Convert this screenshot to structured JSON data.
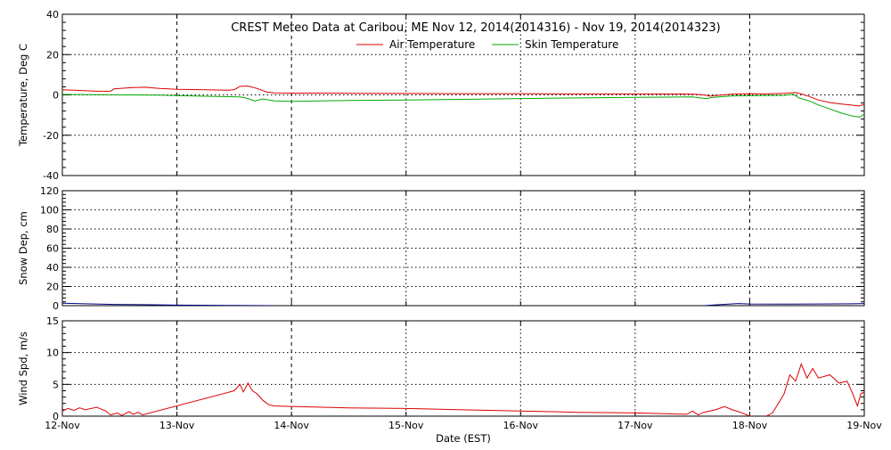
{
  "chart_data": [
    {
      "type": "line",
      "title": "CREST Meteo Data at Caribou, ME   Nov 12, 2014(2014316) - Nov 19, 2014(2014323)",
      "ylabel": "Temperature, Deg C",
      "xlabel": "",
      "ylim": [
        -40,
        40
      ],
      "yticks": [
        -40,
        -20,
        0,
        20,
        40
      ],
      "xlim": [
        12,
        19
      ],
      "grid": true,
      "legend_position": "top-center",
      "series": [
        {
          "name": "Air Temperature",
          "color": "#dd0000",
          "points": [
            [
              12.0,
              2.5
            ],
            [
              12.15,
              2.2
            ],
            [
              12.3,
              1.8
            ],
            [
              12.42,
              1.8
            ],
            [
              12.45,
              3.0
            ],
            [
              12.6,
              3.6
            ],
            [
              12.72,
              3.8
            ],
            [
              12.85,
              3.2
            ],
            [
              13.0,
              2.8
            ],
            [
              13.2,
              2.6
            ],
            [
              13.45,
              2.3
            ],
            [
              13.5,
              2.6
            ],
            [
              13.55,
              4.2
            ],
            [
              13.62,
              4.4
            ],
            [
              13.7,
              3.2
            ],
            [
              13.78,
              1.5
            ],
            [
              13.85,
              1.0
            ],
            [
              14.0,
              0.9
            ],
            [
              14.5,
              0.8
            ],
            [
              15.0,
              0.7
            ],
            [
              15.5,
              0.6
            ],
            [
              16.0,
              0.6
            ],
            [
              16.5,
              0.5
            ],
            [
              17.0,
              0.5
            ],
            [
              17.5,
              0.4
            ],
            [
              17.6,
              0.0
            ],
            [
              17.65,
              -0.6
            ],
            [
              17.72,
              -0.2
            ],
            [
              17.85,
              0.4
            ],
            [
              18.0,
              0.6
            ],
            [
              18.15,
              0.5
            ],
            [
              18.3,
              0.8
            ],
            [
              18.4,
              1.2
            ],
            [
              18.45,
              0.5
            ],
            [
              18.52,
              -0.8
            ],
            [
              18.6,
              -2.5
            ],
            [
              18.7,
              -3.8
            ],
            [
              18.8,
              -4.5
            ],
            [
              18.88,
              -5.0
            ],
            [
              18.95,
              -5.5
            ],
            [
              19.0,
              -4.8
            ]
          ]
        },
        {
          "name": "Skin Temperature",
          "color": "#00aa00",
          "points": [
            [
              12.0,
              0.2
            ],
            [
              12.3,
              0.1
            ],
            [
              12.6,
              0.0
            ],
            [
              12.85,
              -0.1
            ],
            [
              13.0,
              -0.3
            ],
            [
              13.2,
              -0.6
            ],
            [
              13.45,
              -0.9
            ],
            [
              13.55,
              -1.0
            ],
            [
              13.6,
              -1.5
            ],
            [
              13.68,
              -3.0
            ],
            [
              13.75,
              -2.0
            ],
            [
              13.85,
              -3.0
            ],
            [
              14.0,
              -3.2
            ],
            [
              14.5,
              -2.8
            ],
            [
              15.0,
              -2.5
            ],
            [
              15.5,
              -2.2
            ],
            [
              16.0,
              -1.8
            ],
            [
              16.5,
              -1.5
            ],
            [
              17.0,
              -1.2
            ],
            [
              17.5,
              -1.0
            ],
            [
              17.62,
              -1.8
            ],
            [
              17.68,
              -1.2
            ],
            [
              17.85,
              -0.5
            ],
            [
              18.0,
              -0.4
            ],
            [
              18.3,
              -0.2
            ],
            [
              18.38,
              0.3
            ],
            [
              18.43,
              -1.5
            ],
            [
              18.52,
              -3.0
            ],
            [
              18.6,
              -5.0
            ],
            [
              18.7,
              -7.0
            ],
            [
              18.8,
              -9.0
            ],
            [
              18.9,
              -10.5
            ],
            [
              18.96,
              -11.0
            ],
            [
              19.0,
              -9.5
            ]
          ]
        }
      ]
    },
    {
      "type": "line",
      "ylabel": "Snow Dep, cm",
      "xlabel": "",
      "ylim": [
        0,
        120
      ],
      "yticks": [
        0,
        20,
        40,
        60,
        80,
        100,
        120
      ],
      "xlim": [
        12,
        19
      ],
      "grid": true,
      "series": [
        {
          "color": "#000088",
          "segments": [
            [
              [
                12.0,
                2.5
              ],
              [
                12.2,
                2.0
              ],
              [
                12.45,
                1.3
              ],
              [
                12.7,
                1.0
              ],
              [
                13.0,
                0.6
              ],
              [
                13.3,
                0.4
              ],
              [
                13.5,
                0.2
              ],
              [
                13.85,
                0.0
              ]
            ],
            [
              [
                17.6,
                0.0
              ],
              [
                17.75,
                1.2
              ],
              [
                17.9,
                2.2
              ],
              [
                18.0,
                1.8
              ],
              [
                18.3,
                1.6
              ],
              [
                18.6,
                1.8
              ],
              [
                18.9,
                2.0
              ],
              [
                19.0,
                2.2
              ]
            ]
          ]
        }
      ]
    },
    {
      "type": "line",
      "ylabel": "Wind Spd, m/s",
      "xlabel": "Date (EST)",
      "ylim": [
        0,
        15
      ],
      "yticks": [
        0,
        5,
        10,
        15
      ],
      "xlim": [
        12,
        19
      ],
      "xticks": [
        "12-Nov",
        "13-Nov",
        "14-Nov",
        "15-Nov",
        "16-Nov",
        "17-Nov",
        "18-Nov",
        "19-Nov"
      ],
      "grid": true,
      "series": [
        {
          "color": "#dd0000",
          "points": [
            [
              12.0,
              0.8
            ],
            [
              12.05,
              1.2
            ],
            [
              12.1,
              0.9
            ],
            [
              12.15,
              1.3
            ],
            [
              12.2,
              1.0
            ],
            [
              12.3,
              1.4
            ],
            [
              12.38,
              0.8
            ],
            [
              12.42,
              0.2
            ],
            [
              12.48,
              0.5
            ],
            [
              12.52,
              0.1
            ],
            [
              12.58,
              0.7
            ],
            [
              12.62,
              0.3
            ],
            [
              12.66,
              0.6
            ],
            [
              12.7,
              0.2
            ],
            [
              13.5,
              4.0
            ],
            [
              13.55,
              5.0
            ],
            [
              13.58,
              3.8
            ],
            [
              13.62,
              5.2
            ],
            [
              13.66,
              4.0
            ],
            [
              13.7,
              3.5
            ],
            [
              13.75,
              2.5
            ],
            [
              13.8,
              1.8
            ],
            [
              13.85,
              1.6
            ],
            [
              14.5,
              1.3
            ],
            [
              15.0,
              1.2
            ],
            [
              15.5,
              1.0
            ],
            [
              16.0,
              0.8
            ],
            [
              16.5,
              0.6
            ],
            [
              17.0,
              0.5
            ],
            [
              17.45,
              0.3
            ],
            [
              17.5,
              0.8
            ],
            [
              17.55,
              0.2
            ],
            [
              17.6,
              0.6
            ],
            [
              17.7,
              1.0
            ],
            [
              17.78,
              1.5
            ],
            [
              17.85,
              1.0
            ],
            [
              17.92,
              0.6
            ],
            [
              18.0,
              0.0
            ],
            [
              18.1,
              -0.4
            ],
            [
              18.2,
              0.5
            ],
            [
              18.3,
              3.5
            ],
            [
              18.35,
              6.5
            ],
            [
              18.4,
              5.5
            ],
            [
              18.45,
              8.2
            ],
            [
              18.5,
              6.0
            ],
            [
              18.55,
              7.5
            ],
            [
              18.6,
              6.0
            ],
            [
              18.7,
              6.5
            ],
            [
              18.78,
              5.2
            ],
            [
              18.85,
              5.5
            ],
            [
              18.9,
              3.5
            ],
            [
              18.94,
              1.6
            ],
            [
              18.97,
              3.5
            ],
            [
              19.0,
              3.8
            ]
          ]
        }
      ]
    }
  ]
}
